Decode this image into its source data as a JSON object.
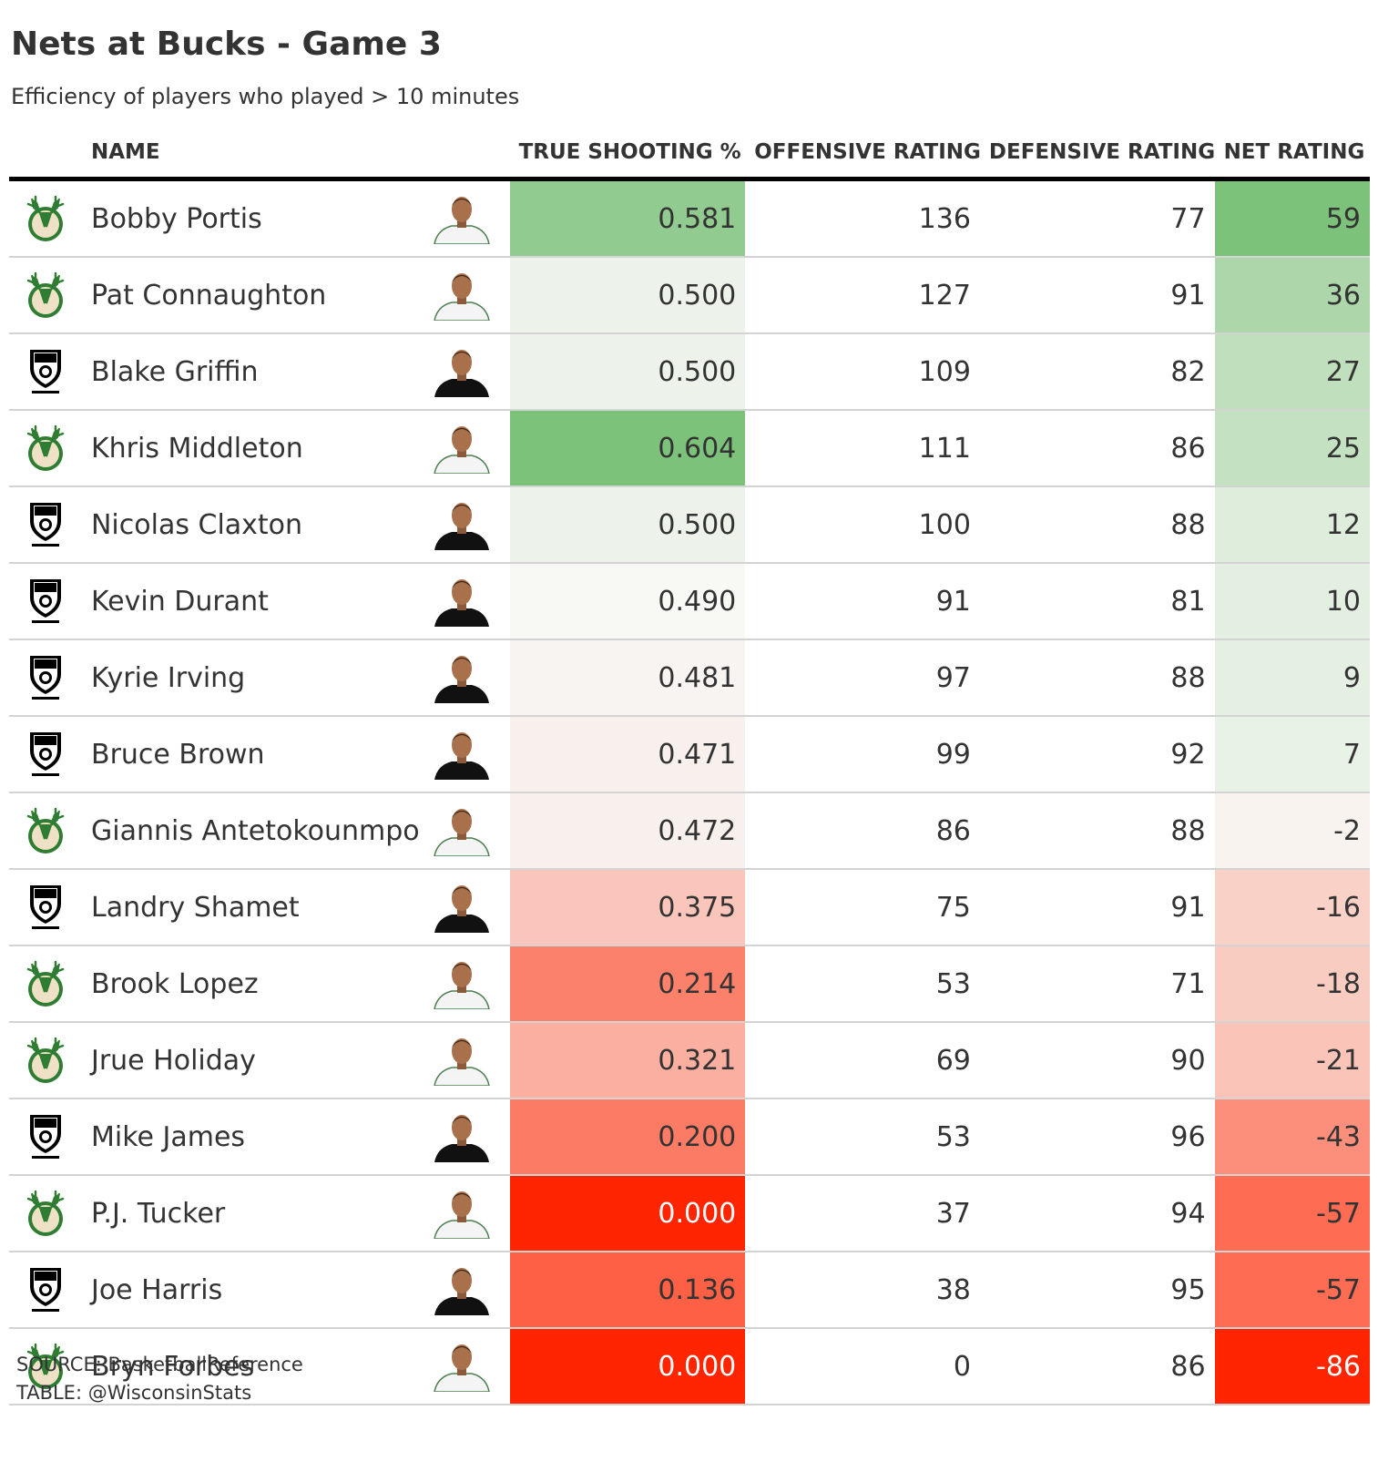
{
  "title": "Nets at Bucks - Game 3",
  "subtitle": "Efficiency of players who played > 10 minutes",
  "colors": {
    "bucks_green": "#2e7d32",
    "bucks_cream": "#eee1c6",
    "nets_black": "#000000",
    "high_green": "#7dc27a",
    "low_red": "#ff2500"
  },
  "icons": {
    "bucks": "bucks-logo-icon",
    "nets": "nets-logo-icon",
    "photo": "player-headshot-icon"
  },
  "columns": {
    "name": "NAME",
    "ts": "TRUE SHOOTING %",
    "ortg": "OFFENSIVE RATING",
    "drtg": "DEFENSIVE RATING",
    "net": "NET RATING"
  },
  "chart_data": {
    "type": "table",
    "title": "Nets at Bucks - Game 3",
    "subtitle": "Efficiency of players who played > 10 minutes",
    "columns": [
      "NAME",
      "TRUE SHOOTING %",
      "OFFENSIVE RATING",
      "DEFENSIVE RATING",
      "NET RATING"
    ],
    "rows": [
      {
        "team": "bucks",
        "name": "Bobby Portis",
        "ts": "0.581",
        "ortg": "136",
        "drtg": "77",
        "net": "59"
      },
      {
        "team": "bucks",
        "name": "Pat Connaughton",
        "ts": "0.500",
        "ortg": "127",
        "drtg": "91",
        "net": "36"
      },
      {
        "team": "nets",
        "name": "Blake Griffin",
        "ts": "0.500",
        "ortg": "109",
        "drtg": "82",
        "net": "27"
      },
      {
        "team": "bucks",
        "name": "Khris Middleton",
        "ts": "0.604",
        "ortg": "111",
        "drtg": "86",
        "net": "25"
      },
      {
        "team": "nets",
        "name": "Nicolas Claxton",
        "ts": "0.500",
        "ortg": "100",
        "drtg": "88",
        "net": "12"
      },
      {
        "team": "nets",
        "name": "Kevin Durant",
        "ts": "0.490",
        "ortg": "91",
        "drtg": "81",
        "net": "10"
      },
      {
        "team": "nets",
        "name": "Kyrie Irving",
        "ts": "0.481",
        "ortg": "97",
        "drtg": "88",
        "net": "9"
      },
      {
        "team": "nets",
        "name": "Bruce Brown",
        "ts": "0.471",
        "ortg": "99",
        "drtg": "92",
        "net": "7"
      },
      {
        "team": "bucks",
        "name": "Giannis Antetokounmpo",
        "ts": "0.472",
        "ortg": "86",
        "drtg": "88",
        "net": "-2"
      },
      {
        "team": "nets",
        "name": "Landry Shamet",
        "ts": "0.375",
        "ortg": "75",
        "drtg": "91",
        "net": "-16"
      },
      {
        "team": "bucks",
        "name": "Brook Lopez",
        "ts": "0.214",
        "ortg": "53",
        "drtg": "71",
        "net": "-18"
      },
      {
        "team": "bucks",
        "name": "Jrue Holiday",
        "ts": "0.321",
        "ortg": "69",
        "drtg": "90",
        "net": "-21"
      },
      {
        "team": "nets",
        "name": "Mike James",
        "ts": "0.200",
        "ortg": "53",
        "drtg": "96",
        "net": "-43"
      },
      {
        "team": "bucks",
        "name": "P.J. Tucker",
        "ts": "0.000",
        "ortg": "37",
        "drtg": "94",
        "net": "-57"
      },
      {
        "team": "nets",
        "name": "Joe Harris",
        "ts": "0.136",
        "ortg": "38",
        "drtg": "95",
        "net": "-57"
      },
      {
        "team": "bucks",
        "name": "Bryn Forbes",
        "ts": "0.000",
        "ortg": "0",
        "drtg": "86",
        "net": "-86"
      }
    ]
  },
  "footer": {
    "source": "SOURCE: BasketballReference",
    "table_credit": "TABLE: @WisconsinStats"
  }
}
